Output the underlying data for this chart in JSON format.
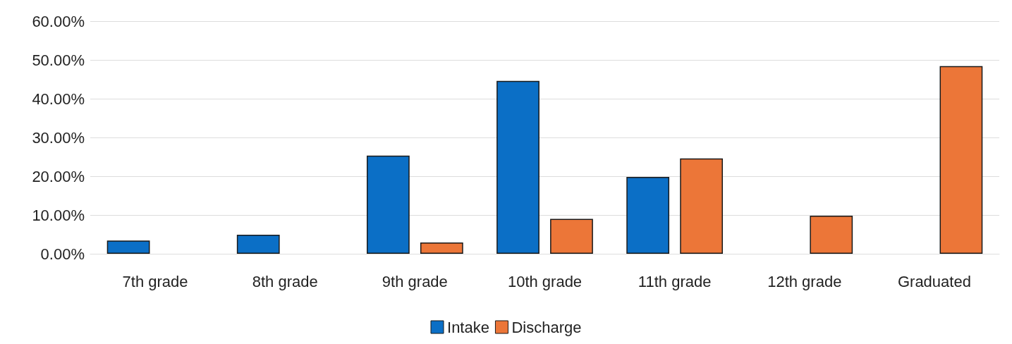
{
  "chart_data": {
    "type": "bar",
    "categories": [
      "7th grade",
      "8th grade",
      "9th grade",
      "10th grade",
      "11th grade",
      "12th grade",
      "Graduated"
    ],
    "series": [
      {
        "name": "Intake",
        "color": "#0b6fc6",
        "values": [
          3.4,
          4.9,
          25.3,
          44.6,
          19.8,
          null,
          null
        ]
      },
      {
        "name": "Discharge",
        "color": "#ec7638",
        "values": [
          null,
          null,
          2.9,
          9.0,
          24.6,
          9.8,
          48.4
        ]
      }
    ],
    "ylim": [
      0,
      60
    ],
    "yticks": [
      {
        "value": 0,
        "label": "0.00%"
      },
      {
        "value": 10,
        "label": "10.00%"
      },
      {
        "value": 20,
        "label": "20.00%"
      },
      {
        "value": 30,
        "label": "30.00%"
      },
      {
        "value": 40,
        "label": "40.00%"
      },
      {
        "value": 50,
        "label": "50.00%"
      },
      {
        "value": 60,
        "label": "60.00%"
      }
    ],
    "grid": "y",
    "legend": "bottom"
  }
}
